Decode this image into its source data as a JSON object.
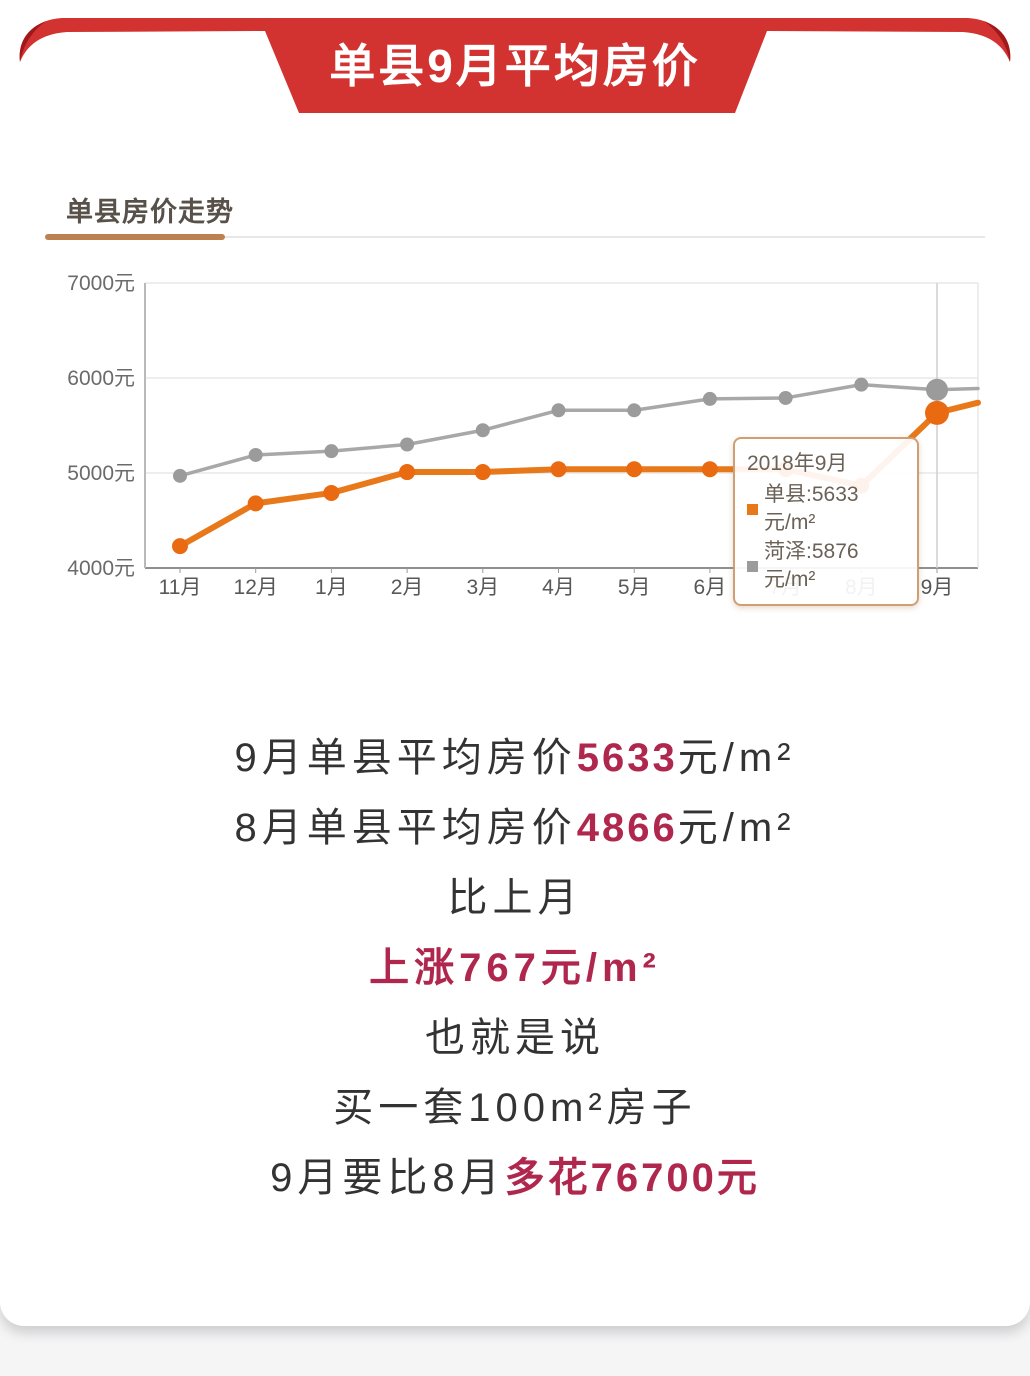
{
  "page": {
    "background": "#f5f5f6",
    "card_background": "#ffffff"
  },
  "banner": {
    "title": "单县9月平均房价",
    "color": "#d23330",
    "tip_shadow_color": "#9e181c",
    "text_color": "#ffffff"
  },
  "section": {
    "title": "单县房价走势",
    "accent_color": "#bd8050"
  },
  "chart_data": {
    "type": "line",
    "title": "单县房价走势",
    "categories": [
      "11月",
      "12月",
      "1月",
      "2月",
      "3月",
      "4月",
      "5月",
      "6月",
      "7月",
      "8月",
      "9月"
    ],
    "series": [
      {
        "name": "单县",
        "color": "#e8791b",
        "dot_color": "#e96a10",
        "line_width": 6,
        "dot_radius": 8,
        "dot_radius_highlight": 12,
        "values": [
          4230,
          4680,
          4790,
          5010,
          5010,
          5040,
          5040,
          5040,
          5040,
          4866,
          5633
        ],
        "edge_value": 5740
      },
      {
        "name": "菏泽",
        "color": "#a8a8a8",
        "dot_color": "#9b9b9b",
        "line_width": 3.5,
        "dot_radius": 7,
        "dot_radius_highlight": 11,
        "values": [
          4970,
          5190,
          5230,
          5300,
          5450,
          5660,
          5660,
          5780,
          5790,
          5930,
          5876
        ],
        "edge_value": 5890
      }
    ],
    "y_ticks": [
      "4000元",
      "5000元",
      "6000元",
      "7000元"
    ],
    "ylim": [
      4000,
      7000
    ],
    "highlight_index": 10,
    "grid": true,
    "legend_position": "tooltip-only"
  },
  "tooltip": {
    "title": "2018年9月",
    "items": [
      {
        "name": "单县",
        "text": "单县:5633元/m²",
        "color": "#e8791b"
      },
      {
        "name": "菏泽",
        "text": "菏泽:5876元/m²",
        "color": "#9b9b9b"
      }
    ]
  },
  "summary": {
    "line1": {
      "prefix": "9月单县平均房价",
      "value": "5633",
      "suffix": "元/m²"
    },
    "line2": {
      "prefix": "8月单县平均房价",
      "value": "4866",
      "suffix": "元/m²"
    },
    "line3": "比上月",
    "line4": "上涨767元/m²",
    "line5": "也就是说",
    "line6": "买一套100m²房子",
    "line7": {
      "prefix": "9月要比8月",
      "value": "多花76700元"
    }
  },
  "colors": {
    "highlight_red": "#b0274e",
    "text_dark": "#333333"
  }
}
